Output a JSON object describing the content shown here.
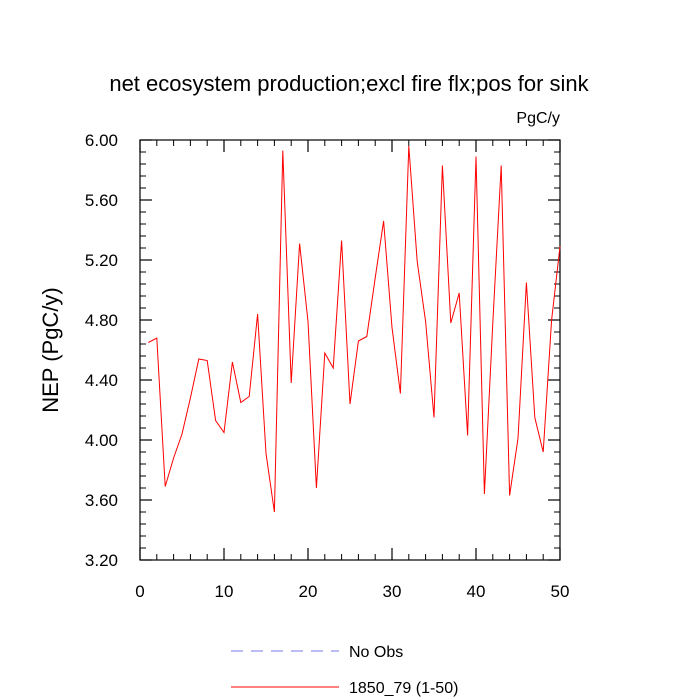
{
  "chart_data": {
    "type": "line",
    "title": "net ecosystem production;excl fire flx;pos for sink",
    "units": "PgC/y",
    "xlabel": "",
    "ylabel": "NEP  (PgC/y)",
    "xlim": [
      0,
      50
    ],
    "ylim": [
      3.2,
      6.0
    ],
    "xticks": [
      0,
      10,
      20,
      30,
      40,
      50
    ],
    "xtick_labels": [
      "0",
      "10",
      "20",
      "30",
      "40",
      "50"
    ],
    "yticks": [
      3.2,
      3.6,
      4.0,
      4.4,
      4.8,
      5.2,
      5.6,
      6.0
    ],
    "ytick_labels": [
      "3.20",
      "3.60",
      "4.00",
      "4.40",
      "4.80",
      "5.20",
      "5.60",
      "6.00"
    ],
    "grid": false,
    "legend_position": "bottom-center",
    "series": [
      {
        "name": "1850_79 (1-50)",
        "color": "#ff0000",
        "style": "solid",
        "x": [
          1,
          2,
          3,
          4,
          5,
          6,
          7,
          8,
          9,
          10,
          11,
          12,
          13,
          14,
          15,
          16,
          17,
          18,
          19,
          20,
          21,
          22,
          23,
          24,
          25,
          26,
          27,
          28,
          29,
          30,
          31,
          32,
          33,
          34,
          35,
          36,
          37,
          38,
          39,
          40,
          41,
          42,
          43,
          44,
          45,
          46,
          47,
          48,
          49,
          50
        ],
        "values": [
          4.65,
          4.68,
          3.69,
          3.88,
          4.04,
          4.28,
          4.54,
          4.53,
          4.13,
          4.05,
          4.52,
          4.25,
          4.29,
          4.84,
          3.91,
          3.52,
          5.93,
          4.38,
          5.31,
          4.79,
          3.68,
          4.58,
          4.48,
          5.33,
          4.24,
          4.66,
          4.69,
          5.08,
          5.46,
          4.75,
          4.31,
          5.96,
          5.19,
          4.79,
          4.15,
          5.83,
          4.78,
          4.98,
          4.03,
          5.89,
          3.64,
          4.78,
          5.83,
          3.63,
          4.01,
          5.05,
          4.15,
          3.92,
          4.8,
          5.29
        ]
      }
    ],
    "legend": [
      {
        "label": "No Obs",
        "color": "#7777ee",
        "style": "dashed"
      },
      {
        "label": "1850_79 (1-50)",
        "color": "#ff0000",
        "style": "solid"
      }
    ]
  }
}
